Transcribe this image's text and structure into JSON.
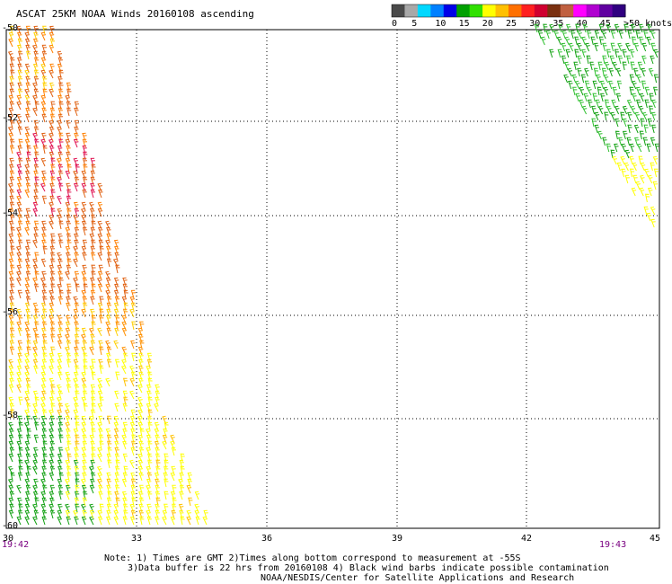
{
  "title": "ASCAT 25KM NOAA Winds 20160108 ascending",
  "legend": {
    "labels": [
      "0",
      "5",
      "10",
      "15",
      "20",
      "25",
      "30",
      "35",
      "40",
      "45",
      ">50 knots"
    ],
    "colors": [
      "#4a4a4a",
      "#a8a8a8",
      "#00d8ff",
      "#0080ff",
      "#0000e8",
      "#00a000",
      "#30e000",
      "#ffff00",
      "#ffc000",
      "#ff7000",
      "#ff2020",
      "#d00030",
      "#7a3010",
      "#c06040",
      "#ff00ff",
      "#b000d0",
      "#6000a0",
      "#300080"
    ]
  },
  "axes": {
    "lat_labels": [
      "-50",
      "-52",
      "-54",
      "-56",
      "-58",
      "-60"
    ],
    "lon_labels": [
      "30",
      "33",
      "36",
      "39",
      "42",
      "45"
    ]
  },
  "times": {
    "left": "19:42",
    "right": "19:43"
  },
  "notes": {
    "line1": "Note: 1) Times are GMT 2)Times along bottom correspond to measurement at -55S",
    "line2": "3)Data buffer is 22 hrs from 20160108 4) Black wind barbs indicate possible contamination",
    "line3": "NOAA/NESDIS/Center for Satellite Applications and Research"
  }
}
